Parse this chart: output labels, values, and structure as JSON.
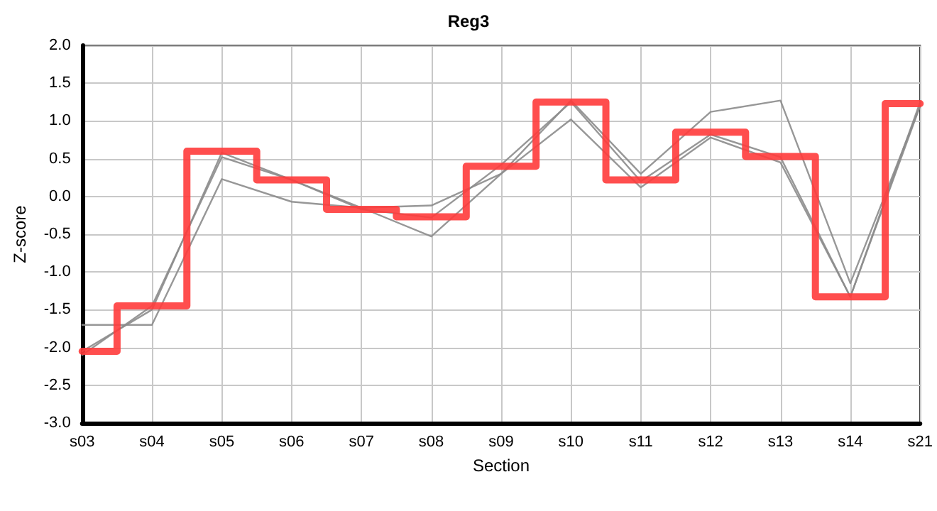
{
  "chart_data": {
    "type": "line",
    "title": "Reg3",
    "xlabel": "Section",
    "ylabel": "Z-score",
    "categories": [
      "s03",
      "s04",
      "s05",
      "s06",
      "s07",
      "s08",
      "s09",
      "s10",
      "s11",
      "s12",
      "s13",
      "s14",
      "s21"
    ],
    "ylim": [
      -3,
      2
    ],
    "yticks": [
      {
        "value": -3,
        "label": "-3.0"
      },
      {
        "value": -2.5,
        "label": "-2.5"
      },
      {
        "value": -2,
        "label": "-2.0"
      },
      {
        "value": -1.5,
        "label": "-1.5"
      },
      {
        "value": -1,
        "label": "-1.0"
      },
      {
        "value": -0.5,
        "label": "-0.5"
      },
      {
        "value": 0,
        "label": "0.0"
      },
      {
        "value": 0.5,
        "label": "0.5"
      },
      {
        "value": 1,
        "label": "1.0"
      },
      {
        "value": 1.5,
        "label": "1.5"
      },
      {
        "value": 2,
        "label": "2.0"
      }
    ],
    "grid": true,
    "marker": "none",
    "line_style": "solid",
    "series": [
      {
        "color": "#8c8c8c",
        "values": [
          -1.7,
          -1.7,
          0.23,
          -0.07,
          -0.15,
          -0.12,
          0.3,
          1.02,
          0.12,
          0.78,
          0.45,
          -1.33,
          1.2
        ]
      },
      {
        "color": "#8c8c8c",
        "values": [
          -2.05,
          -1.5,
          0.58,
          0.22,
          -0.15,
          -0.53,
          0.3,
          1.27,
          0.3,
          1.12,
          1.27,
          -1.15,
          1.2
        ]
      },
      {
        "color": "#8c8c8c",
        "values": [
          -2.1,
          -1.45,
          0.52,
          0.22,
          -0.17,
          -0.28,
          0.42,
          1.25,
          0.2,
          0.82,
          0.52,
          -1.33,
          1.25
        ]
      },
      {
        "type": "step",
        "color": "#ff3b3b",
        "values": [
          -2.05,
          -1.45,
          0.6,
          0.22,
          -0.17,
          -0.27,
          0.4,
          1.25,
          0.22,
          0.85,
          0.53,
          -1.33,
          1.23
        ]
      }
    ]
  }
}
